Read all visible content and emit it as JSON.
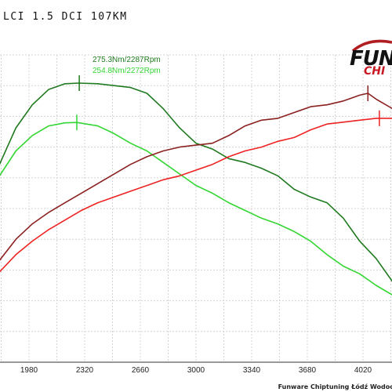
{
  "chart_data": {
    "type": "line",
    "title": "LCI 1.5 DCI 107KM",
    "xlabel": "",
    "ylabel": "",
    "x_ticks": [
      1980,
      2320,
      2660,
      3000,
      3340,
      3680,
      4020
    ],
    "xlim": [
      1700,
      4250
    ],
    "grid": true,
    "annotations": [
      {
        "text": "275.3Nm/2287Rpm",
        "color": "#1f7a1f",
        "series": 0
      },
      {
        "text": "254.8Nm/2272Rpm",
        "color": "#33d633",
        "series": 1
      }
    ],
    "series": [
      {
        "color": "#1f7a1f",
        "x": [
          1700,
          1800,
          1900,
          2000,
          2100,
          2200,
          2287,
          2400,
          2500,
          2600,
          2700,
          2800,
          2900,
          3000,
          3100,
          3200,
          3300,
          3400,
          3500,
          3600,
          3700,
          3800,
          3900,
          4000,
          4100,
          4200,
          4250
        ],
        "y": [
          212,
          233,
          252,
          264,
          272,
          275,
          275.3,
          275,
          274,
          273,
          270,
          262,
          252,
          244,
          241,
          236,
          234,
          231,
          227,
          220,
          216,
          213,
          205,
          193,
          184,
          172,
          168
        ]
      },
      {
        "color": "#33d633",
        "x": [
          1700,
          1800,
          1900,
          2000,
          2100,
          2200,
          2272,
          2400,
          2500,
          2600,
          2700,
          2800,
          2900,
          3000,
          3100,
          3200,
          3300,
          3400,
          3500,
          3600,
          3700,
          3800,
          3900,
          4000,
          4100,
          4200,
          4250
        ],
        "y": [
          212,
          227,
          240,
          248,
          253,
          254.6,
          254.8,
          253,
          249,
          244,
          240,
          234,
          228,
          222,
          218,
          213,
          209,
          205,
          202,
          198,
          193,
          186,
          180,
          176,
          170,
          165,
          163
        ]
      },
      {
        "color": "#8b2020",
        "x": [
          1700,
          1800,
          1900,
          2000,
          2100,
          2200,
          2300,
          2400,
          2500,
          2600,
          2700,
          2800,
          2900,
          3000,
          3100,
          3200,
          3300,
          3400,
          3500,
          3600,
          3700,
          3800,
          3900,
          4000,
          4050,
          4100,
          4200,
          4250
        ],
        "y": [
          170,
          183,
          194,
          202,
          208,
          213,
          218,
          223,
          228,
          233,
          237,
          240,
          242,
          243,
          244,
          248,
          253,
          256,
          257,
          260,
          263,
          264,
          266,
          269,
          270,
          267,
          262,
          259
        ]
      },
      {
        "color": "#ee2222",
        "x": [
          1700,
          1800,
          1900,
          2000,
          2100,
          2200,
          2300,
          2400,
          2500,
          2600,
          2700,
          2800,
          2900,
          3000,
          3100,
          3200,
          3300,
          3400,
          3500,
          3600,
          3700,
          3800,
          3900,
          4000,
          4100,
          4200,
          4250
        ],
        "y": [
          167,
          177,
          186,
          193,
          199,
          204,
          209,
          213,
          216,
          219,
          222,
          225,
          227,
          230,
          233,
          237,
          240,
          242,
          245,
          247,
          251,
          254,
          255,
          256,
          257,
          257,
          256
        ]
      }
    ],
    "peak_markers": [
      {
        "series": 0,
        "x": 2287,
        "y": 275.3
      },
      {
        "series": 1,
        "x": 2272,
        "y": 254.8
      },
      {
        "series": 2,
        "x": 4050,
        "y": 270
      },
      {
        "series": 3,
        "x": 4120,
        "y": 257
      }
    ]
  },
  "logo": {
    "main": "FUN",
    "sub": "CHI",
    "swoosh_color": "#b01e22"
  },
  "footer": "Funware Chiptuning Łódź Wodoc"
}
